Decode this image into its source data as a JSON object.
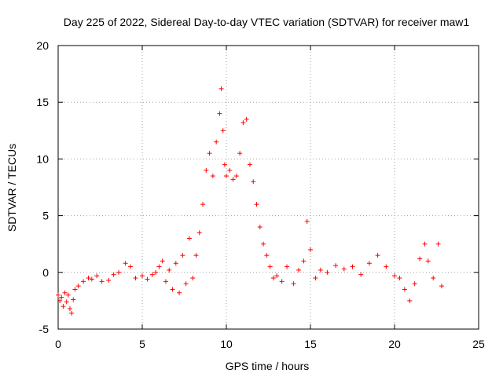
{
  "chart_data": {
    "type": "scatter",
    "title": "Day 225 of 2022, Sidereal Day-to-day VTEC variation (SDTVAR) for receiver maw1",
    "xlabel": "GPS time / hours",
    "ylabel": "SDTVAR / TECUs",
    "xlim": [
      0,
      25
    ],
    "ylim": [
      -5,
      20
    ],
    "xticks": [
      0,
      5,
      10,
      15,
      20,
      25
    ],
    "yticks": [
      -5,
      0,
      5,
      10,
      15,
      20
    ],
    "xtick_labels": [
      "0",
      "5",
      "10",
      "15",
      "20",
      "25"
    ],
    "ytick_labels": [
      "-5",
      "0",
      "5",
      "10",
      "15",
      "20"
    ],
    "grid": true,
    "marker": "+",
    "color": "#ff0000",
    "series": [
      {
        "name": "SDTVAR",
        "x": [
          0.0,
          0.1,
          0.2,
          0.3,
          0.4,
          0.5,
          0.6,
          0.7,
          0.8,
          0.9,
          1.0,
          1.2,
          1.5,
          1.8,
          2.0,
          2.3,
          2.6,
          3.0,
          3.3,
          3.6,
          4.0,
          4.3,
          4.6,
          5.0,
          5.3,
          5.6,
          5.8,
          6.0,
          6.2,
          6.4,
          6.6,
          6.8,
          7.0,
          7.2,
          7.4,
          7.6,
          7.8,
          8.0,
          8.2,
          8.4,
          8.6,
          8.8,
          9.0,
          9.2,
          9.4,
          9.6,
          9.7,
          9.8,
          9.9,
          10.0,
          10.2,
          10.4,
          10.6,
          10.8,
          11.0,
          11.2,
          11.4,
          11.6,
          11.8,
          12.0,
          12.2,
          12.4,
          12.6,
          12.8,
          13.0,
          13.3,
          13.6,
          14.0,
          14.3,
          14.6,
          14.8,
          15.0,
          15.3,
          15.6,
          16.0,
          16.5,
          17.0,
          17.5,
          18.0,
          18.5,
          19.0,
          19.5,
          20.0,
          20.3,
          20.6,
          20.9,
          21.2,
          21.5,
          21.8,
          22.0,
          22.3,
          22.6,
          22.8
        ],
        "y": [
          -2.0,
          -2.5,
          -2.2,
          -3.0,
          -1.8,
          -2.6,
          -2.0,
          -3.2,
          -3.6,
          -2.4,
          -1.5,
          -1.2,
          -0.8,
          -0.5,
          -0.6,
          -0.3,
          -0.8,
          -0.7,
          -0.2,
          0.0,
          0.8,
          0.5,
          -0.5,
          -0.3,
          -0.6,
          -0.2,
          0.0,
          0.5,
          1.0,
          -0.8,
          0.2,
          -1.5,
          0.8,
          -1.8,
          1.5,
          -1.0,
          3.0,
          -0.5,
          1.5,
          3.5,
          6.0,
          9.0,
          10.5,
          8.5,
          11.5,
          14.0,
          16.2,
          12.5,
          9.5,
          8.5,
          9.0,
          8.2,
          8.5,
          10.5,
          13.2,
          13.5,
          9.5,
          8.0,
          6.0,
          4.0,
          2.5,
          1.5,
          0.5,
          -0.5,
          -0.3,
          -0.8,
          0.5,
          -1.0,
          0.2,
          1.0,
          4.5,
          2.0,
          -0.5,
          0.2,
          0.0,
          0.6,
          0.3,
          0.5,
          -0.2,
          0.8,
          1.5,
          0.5,
          -0.3,
          -0.5,
          -1.5,
          -2.5,
          -1.0,
          1.2,
          2.5,
          1.0,
          -0.5,
          2.5,
          -1.2
        ]
      }
    ]
  }
}
